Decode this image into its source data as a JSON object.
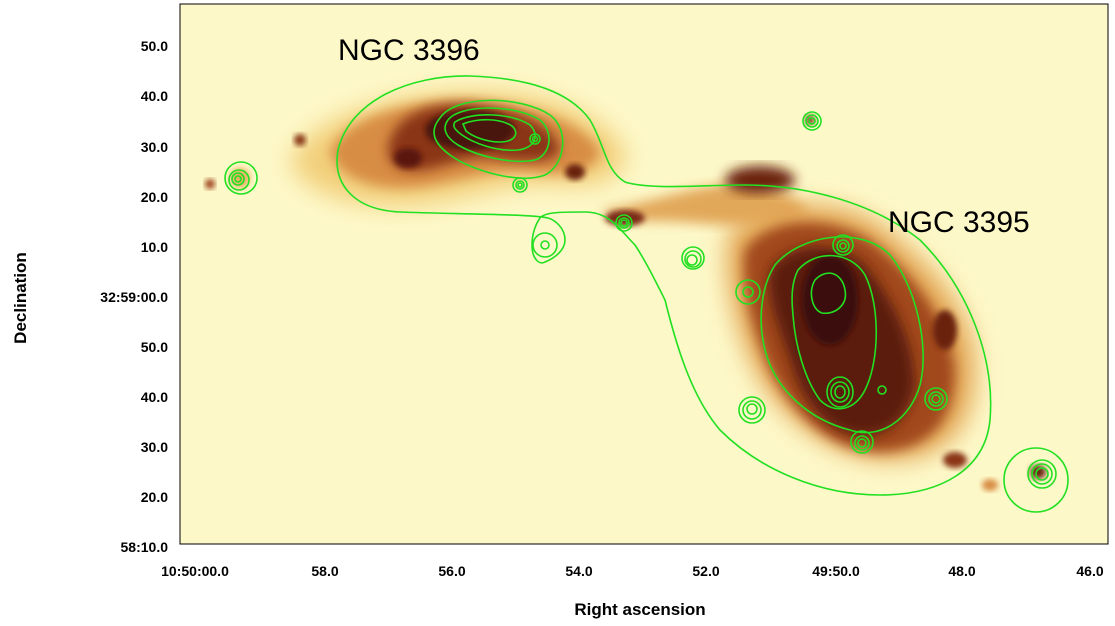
{
  "chart_data": {
    "type": "image",
    "xlabel": "Right ascension",
    "ylabel": "Declination",
    "x_ticks": [
      "10:50:00.0",
      "58.0",
      "56.0",
      "54.0",
      "52.0",
      "49:50.0",
      "48.0",
      "46.0"
    ],
    "y_ticks": [
      "50.0",
      "40.0",
      "30.0",
      "20.0",
      "10.0",
      "32:59:00.0",
      "50.0",
      "40.0",
      "30.0",
      "20.0",
      "58:10.0"
    ],
    "annotations": [
      "NGC 3396",
      "NGC 3395"
    ],
    "colormap": [
      "#fdf8c8",
      "#f4d27a",
      "#cf7a35",
      "#7a2a12",
      "#3a0e08"
    ],
    "contour_color": "#22e022",
    "frame_color": "#000000"
  }
}
